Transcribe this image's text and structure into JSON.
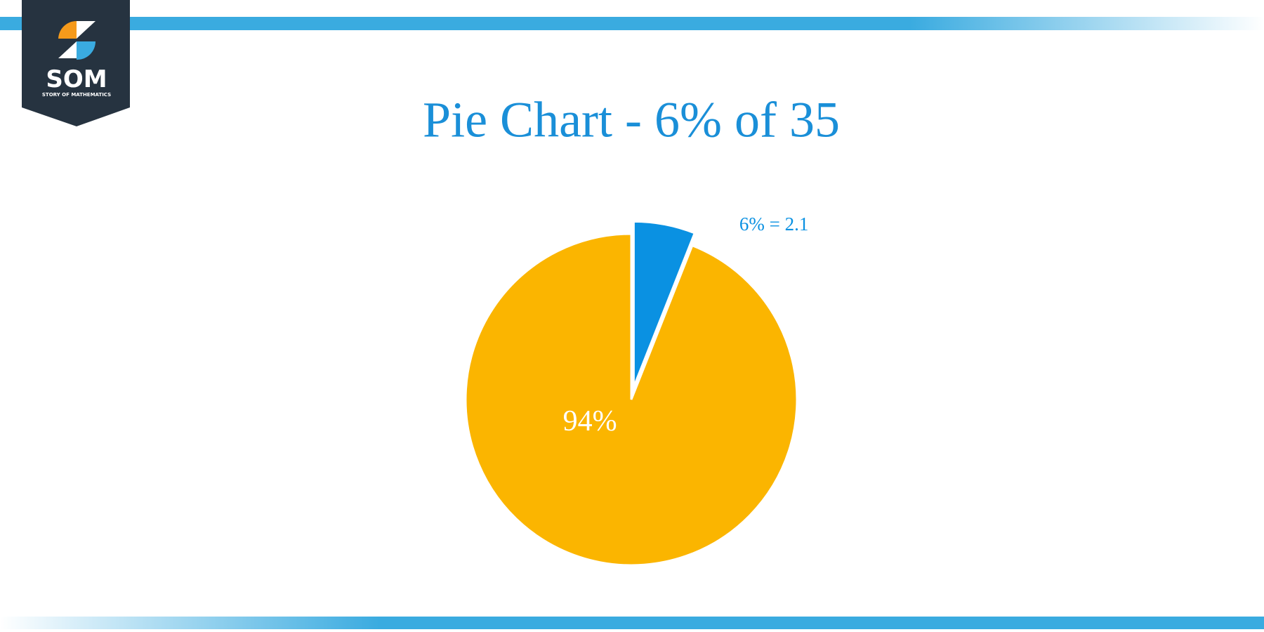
{
  "logo": {
    "name": "SOM",
    "tagline": "STORY OF MATHEMATICS"
  },
  "chart_data": {
    "type": "pie",
    "title": "Pie Chart - 6% of 35",
    "values": [
      6,
      94
    ],
    "value_labels": [
      "6% = 2.1",
      "94%"
    ],
    "colors": [
      "#0a91e2",
      "#fbb500"
    ],
    "label_colors": [
      "#0a91e2",
      "#ffffff"
    ]
  }
}
